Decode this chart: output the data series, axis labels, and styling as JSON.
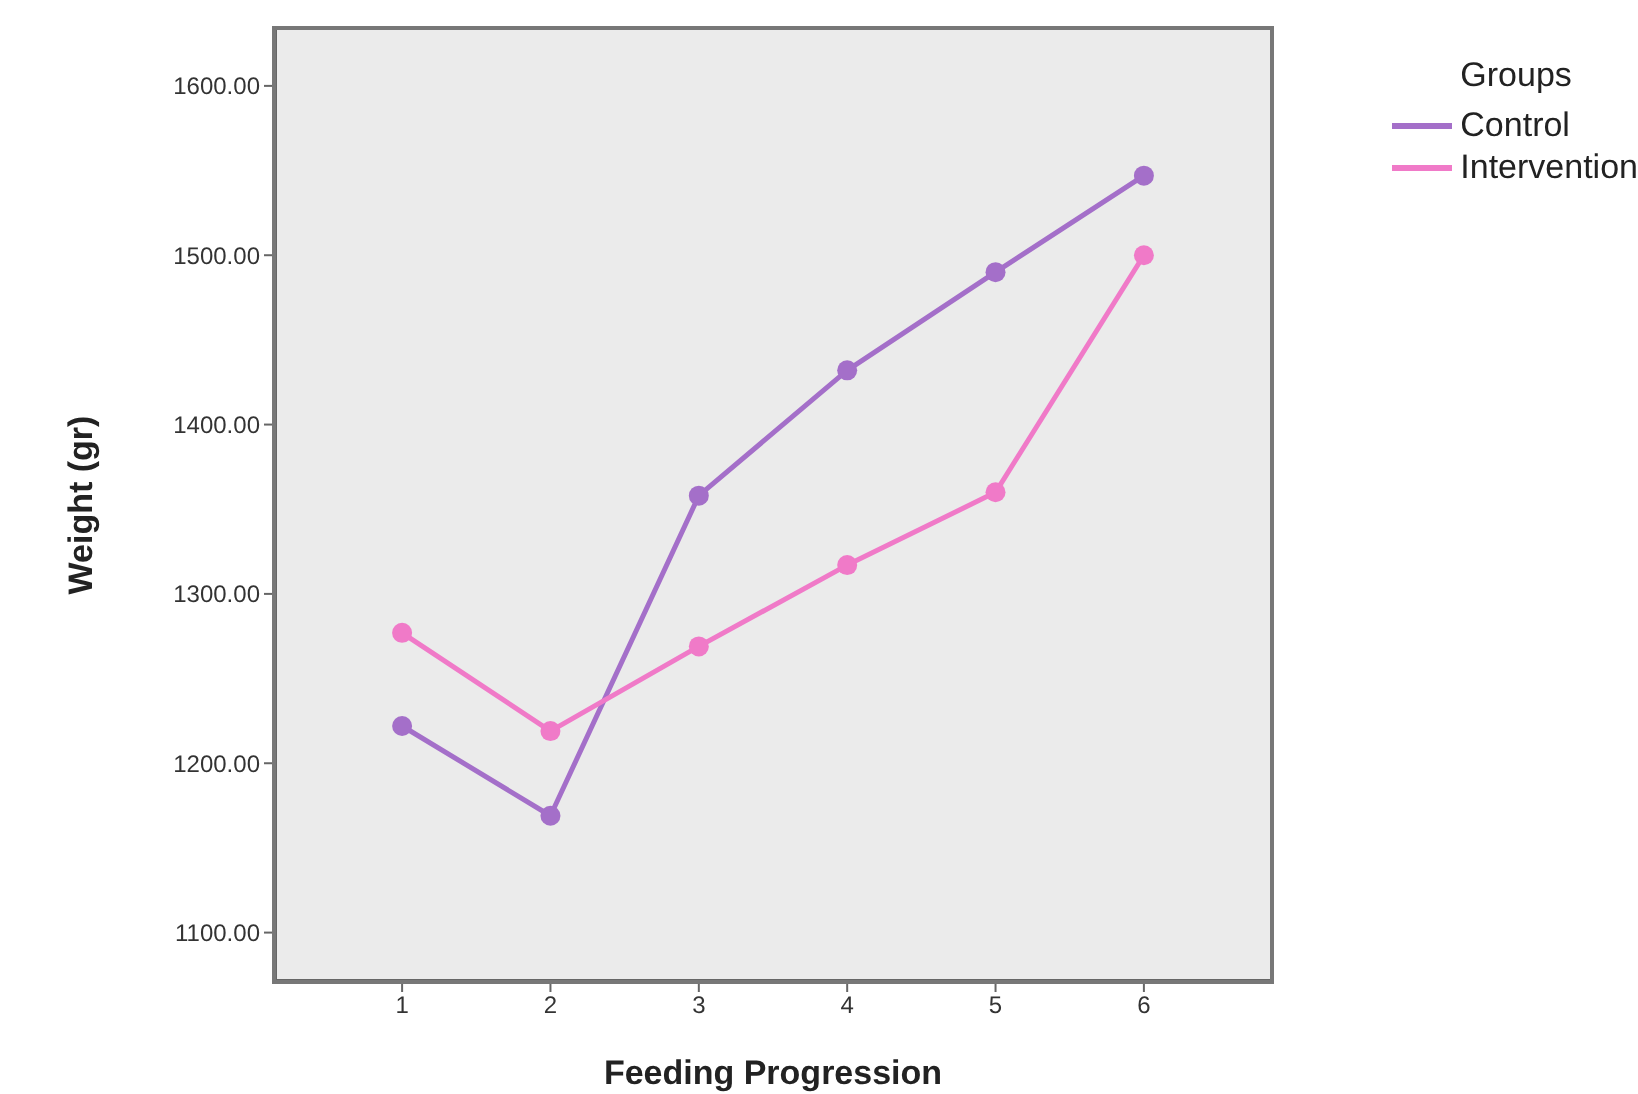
{
  "chart_data": {
    "type": "line",
    "xlabel": "Feeding Progression",
    "ylabel": "Weight (gr)",
    "legend_title": "Groups",
    "legend": "top right",
    "grid": false,
    "marker": "circle",
    "line_style": "solid",
    "x": [
      1,
      2,
      3,
      4,
      5,
      6
    ],
    "xlim": [
      0.15,
      6.85
    ],
    "xticks": [
      1,
      2,
      3,
      4,
      5,
      6
    ],
    "ylim": [
      1072,
      1633
    ],
    "yticks": [
      {
        "value": 1100,
        "label": "1100.00"
      },
      {
        "value": 1200,
        "label": "1200.00"
      },
      {
        "value": 1300,
        "label": "1300.00"
      },
      {
        "value": 1400,
        "label": "1400.00"
      },
      {
        "value": 1500,
        "label": "1500.00"
      },
      {
        "value": 1600,
        "label": "1600.00"
      }
    ],
    "series": [
      {
        "name": "Control",
        "color": "#a46fc9",
        "values": [
          1222,
          1169,
          1358,
          1432,
          1490,
          1547
        ]
      },
      {
        "name": "Intervention",
        "color": "#f07ac8",
        "values": [
          1277,
          1219,
          1269,
          1317,
          1360,
          1500
        ]
      }
    ]
  }
}
